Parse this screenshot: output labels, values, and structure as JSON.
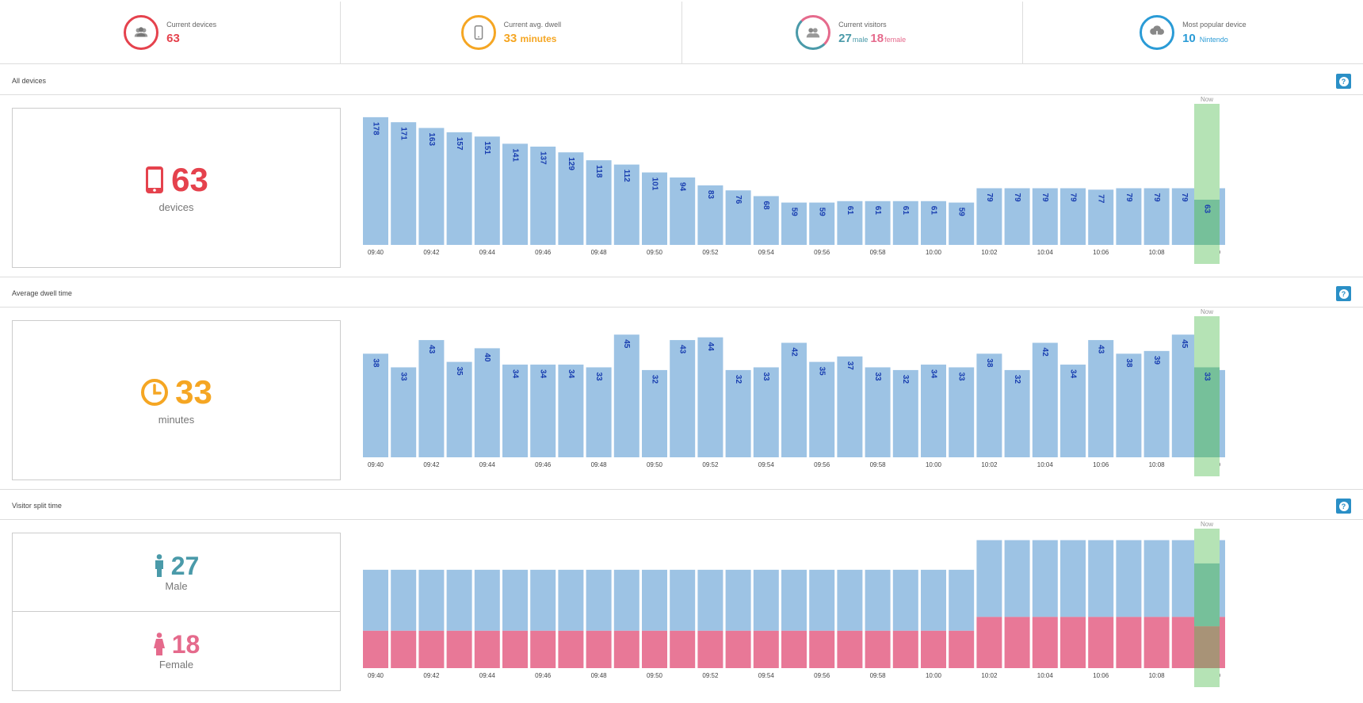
{
  "stats": {
    "devices": {
      "label": "Current devices",
      "value": "63",
      "color": "#e5424d",
      "icon": "group-icon"
    },
    "dwell": {
      "label": "Current avg. dwell",
      "value": "33",
      "unit": "minutes",
      "color": "#f5a623",
      "icon": "phone-icon"
    },
    "visitors": {
      "label": "Current visitors",
      "male_value": "27",
      "male_unit": "male",
      "female_value": "18",
      "female_unit": "female",
      "male_color": "#4a9aa9",
      "female_color": "#e56a8c",
      "icon": "group-icon"
    },
    "popular": {
      "label": "Most popular device",
      "value": "10",
      "unit": "Nintendo",
      "color": "#2a9bd6",
      "icon": "download-icon"
    }
  },
  "sections": {
    "devices": {
      "title": "All devices",
      "big_value": "63",
      "caption": "devices",
      "color": "#e5424d",
      "icon": "phone-icon"
    },
    "dwell": {
      "title": "Average dwell time",
      "big_value": "33",
      "caption": "minutes",
      "color": "#f5a623",
      "icon": "clock-icon"
    },
    "split": {
      "title": "Visitor split time",
      "male_value": "27",
      "male_caption": "Male",
      "female_value": "18",
      "female_caption": "Female",
      "male_color": "#4a9aa9",
      "female_color": "#e56a8c"
    }
  },
  "now_label": "Now",
  "help_label": "?",
  "chart_data": [
    {
      "type": "bar",
      "name": "devices",
      "categories": [
        "09:40",
        "09:41",
        "09:42",
        "09:43",
        "09:44",
        "09:45",
        "09:46",
        "09:47",
        "09:48",
        "09:49",
        "09:50",
        "09:51",
        "09:52",
        "09:53",
        "09:54",
        "09:55",
        "09:56",
        "09:57",
        "09:58",
        "09:59",
        "10:00",
        "10:01",
        "10:02",
        "10:03",
        "10:04",
        "10:05",
        "10:06",
        "10:07",
        "10:08",
        "10:09",
        "10:10"
      ],
      "tick_labels": [
        "09:40",
        "09:42",
        "09:44",
        "09:46",
        "09:48",
        "09:50",
        "09:52",
        "09:54",
        "09:56",
        "09:58",
        "10:00",
        "10:02",
        "10:04",
        "10:06",
        "10:08",
        "10:10"
      ],
      "values": [
        178,
        171,
        163,
        157,
        151,
        141,
        137,
        129,
        118,
        112,
        101,
        94,
        83,
        76,
        68,
        59,
        59,
        61,
        61,
        61,
        61,
        59,
        79,
        79,
        79,
        79,
        77,
        79,
        79,
        79,
        79
      ],
      "now_value": 63,
      "ylim": [
        0,
        190
      ],
      "bar_color": "#9dc3e4",
      "now_color": "#b5e3b5",
      "now_fill_color": "#76c09a"
    },
    {
      "type": "bar",
      "name": "dwell",
      "categories": [
        "09:40",
        "09:41",
        "09:42",
        "09:43",
        "09:44",
        "09:45",
        "09:46",
        "09:47",
        "09:48",
        "09:49",
        "09:50",
        "09:51",
        "09:52",
        "09:53",
        "09:54",
        "09:55",
        "09:56",
        "09:57",
        "09:58",
        "09:59",
        "10:00",
        "10:01",
        "10:02",
        "10:03",
        "10:04",
        "10:05",
        "10:06",
        "10:07",
        "10:08",
        "10:09",
        "10:10"
      ],
      "tick_labels": [
        "09:40",
        "09:42",
        "09:44",
        "09:46",
        "09:48",
        "09:50",
        "09:52",
        "09:54",
        "09:56",
        "09:58",
        "10:00",
        "10:02",
        "10:04",
        "10:06",
        "10:08",
        "10:10"
      ],
      "values": [
        38,
        33,
        43,
        35,
        40,
        34,
        34,
        34,
        33,
        45,
        32,
        43,
        44,
        32,
        33,
        42,
        35,
        37,
        33,
        32,
        34,
        33,
        38,
        32,
        42,
        34,
        43,
        38,
        39,
        45,
        32
      ],
      "now_value": 33,
      "ylim": [
        0,
        50
      ],
      "bar_color": "#9dc3e4",
      "now_color": "#b5e3b5",
      "now_fill_color": "#76c09a"
    },
    {
      "type": "bar",
      "name": "visitor-split",
      "stacked": true,
      "categories": [
        "09:40",
        "09:41",
        "09:42",
        "09:43",
        "09:44",
        "09:45",
        "09:46",
        "09:47",
        "09:48",
        "09:49",
        "09:50",
        "09:51",
        "09:52",
        "09:53",
        "09:54",
        "09:55",
        "09:56",
        "09:57",
        "09:58",
        "09:59",
        "10:00",
        "10:01",
        "10:02",
        "10:03",
        "10:04",
        "10:05",
        "10:06",
        "10:07",
        "10:08",
        "10:09",
        "10:10"
      ],
      "tick_labels": [
        "09:40",
        "09:42",
        "09:44",
        "09:46",
        "09:48",
        "09:50",
        "09:52",
        "09:54",
        "09:56",
        "09:58",
        "10:00",
        "10:02",
        "10:04",
        "10:06",
        "10:08",
        "10:10"
      ],
      "series": [
        {
          "values": [
            0.62,
            0.62,
            0.62,
            0.62,
            0.62,
            0.62,
            0.62,
            0.62,
            0.62,
            0.62,
            0.62,
            0.62,
            0.62,
            0.62,
            0.62,
            0.62,
            0.62,
            0.62,
            0.62,
            0.62,
            0.62,
            0.62,
            0.6,
            0.6,
            0.6,
            0.6,
            0.6,
            0.6,
            0.6,
            0.6,
            0.6
          ],
          "color": "#9dc3e4"
        },
        {
          "values": [
            0.38,
            0.38,
            0.38,
            0.38,
            0.38,
            0.38,
            0.38,
            0.38,
            0.38,
            0.38,
            0.38,
            0.38,
            0.38,
            0.38,
            0.38,
            0.38,
            0.38,
            0.38,
            0.38,
            0.38,
            0.38,
            0.38,
            0.4,
            0.4,
            0.4,
            0.4,
            0.4,
            0.4,
            0.4,
            0.4,
            0.4
          ],
          "color": "#e87897"
        }
      ],
      "totals_relative": [
        0.73,
        0.73,
        0.73,
        0.73,
        0.73,
        0.73,
        0.73,
        0.73,
        0.73,
        0.73,
        0.73,
        0.73,
        0.73,
        0.73,
        0.73,
        0.73,
        0.73,
        0.73,
        0.73,
        0.73,
        0.73,
        0.73,
        0.95,
        0.95,
        0.95,
        0.95,
        0.95,
        0.95,
        0.95,
        0.95,
        0.95
      ],
      "now_male": 27,
      "now_female": 18,
      "now_color": "#b5e3b5",
      "now_male_color": "#76c09a",
      "now_female_color": "#a89377"
    }
  ]
}
